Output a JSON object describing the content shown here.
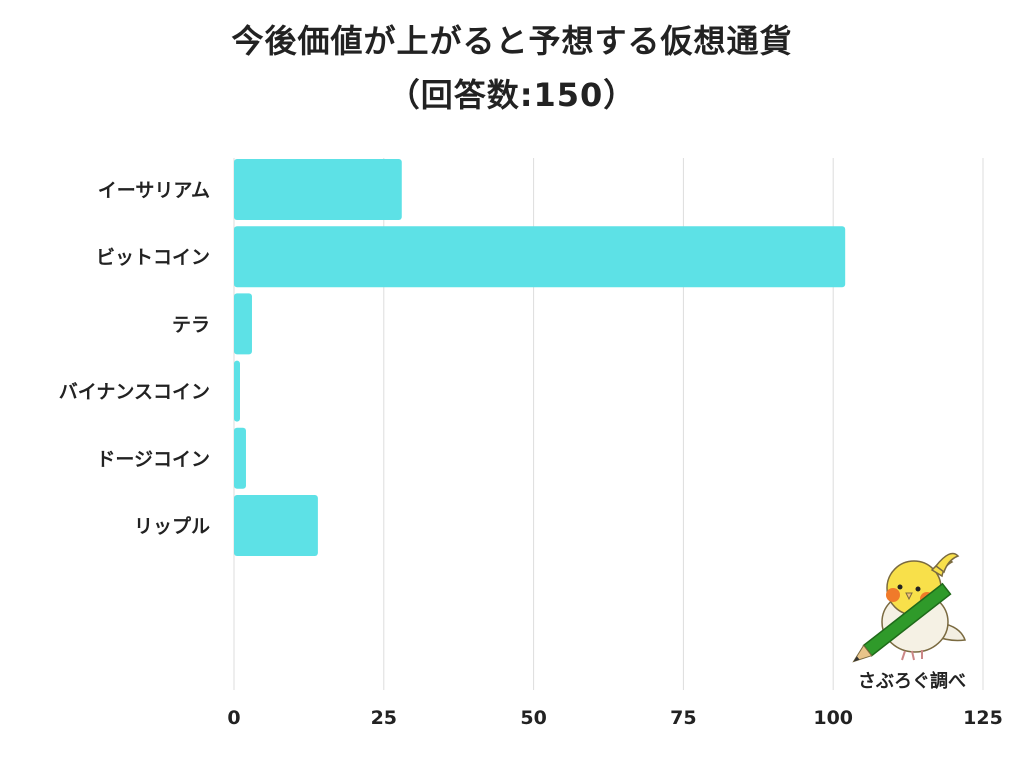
{
  "chart_data": {
    "type": "bar",
    "orientation": "horizontal",
    "title": "今後価値が上がると予想する仮想通貨",
    "subtitle": "（回答数:150）",
    "categories": [
      "イーサリアム",
      "ビットコイン",
      "テラ",
      "バイナンスコイン",
      "ドージコイン",
      "リップル"
    ],
    "values": [
      28,
      102,
      3,
      1,
      2,
      14
    ],
    "xlim": [
      0,
      125
    ],
    "xticks": [
      "0",
      "25",
      "50",
      "75",
      "100",
      "125"
    ],
    "xlabel": "",
    "ylabel": "",
    "grid": "vertical",
    "bar_color": "#5de1e6"
  },
  "credit": "さぶろぐ調べ",
  "mascot_icon": "bird-with-pencil-icon"
}
